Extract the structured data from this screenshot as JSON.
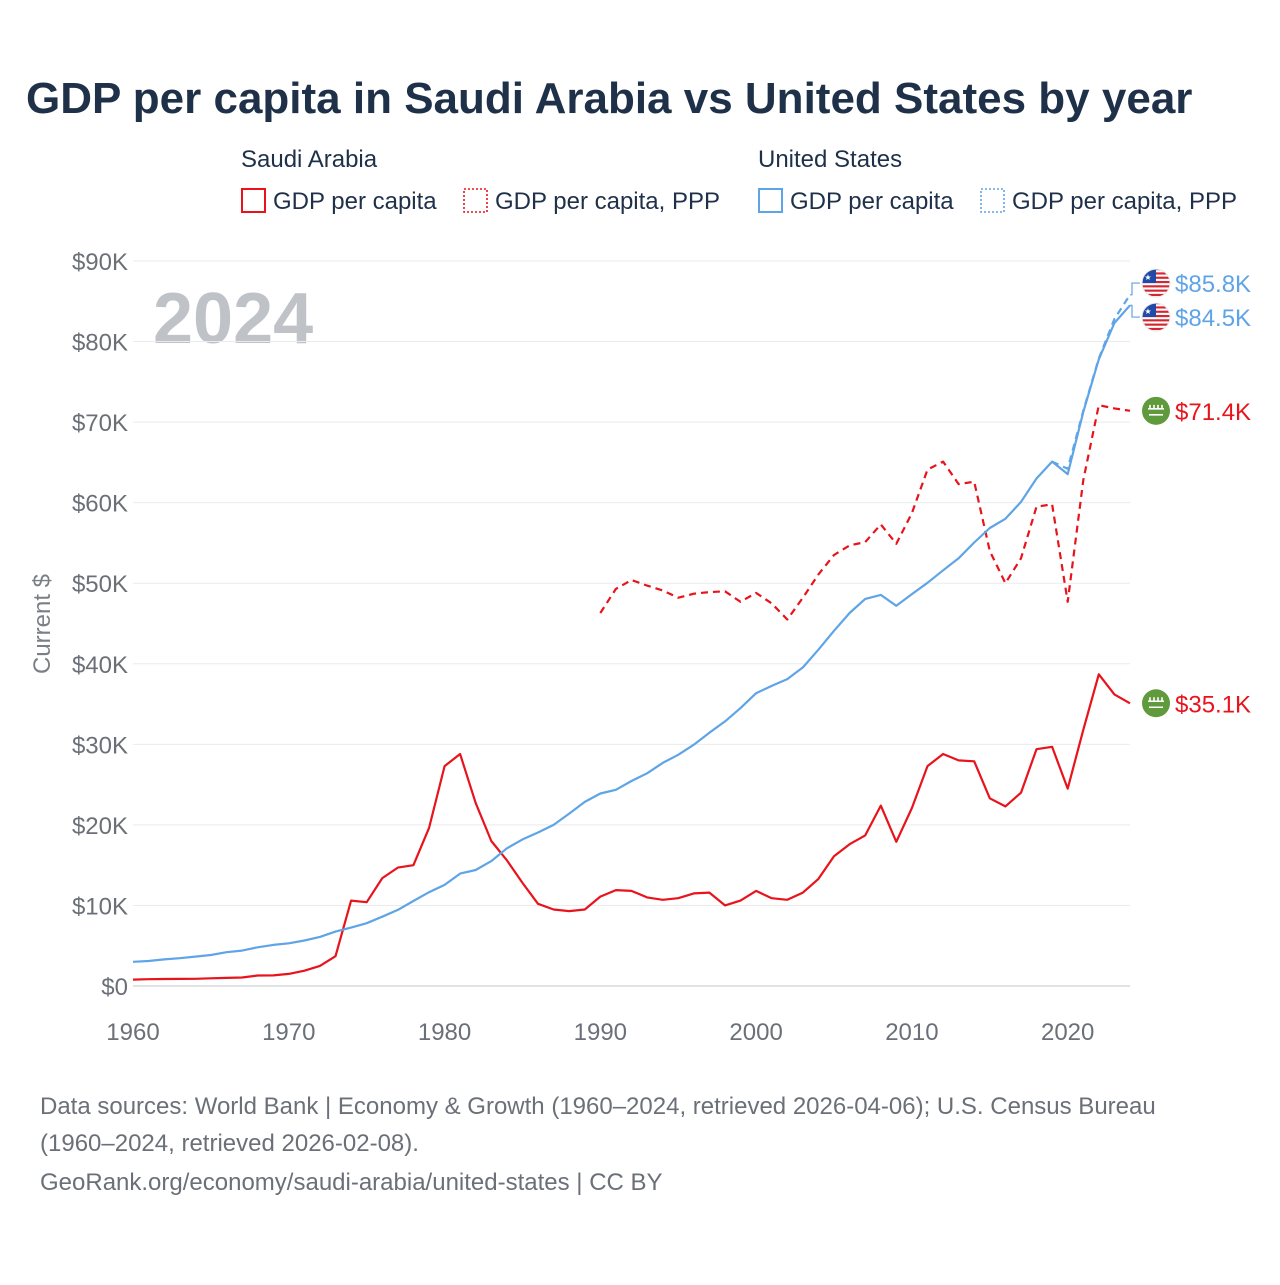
{
  "chart_data": {
    "type": "line",
    "title": "GDP per capita in Saudi Arabia vs United States by year",
    "year_watermark": "2024",
    "ylabel": "Current $",
    "xlabel": "",
    "x_ticks": [
      "1960",
      "1970",
      "1980",
      "1990",
      "2000",
      "2010",
      "2020"
    ],
    "x_tick_values": [
      1960,
      1970,
      1980,
      1990,
      2000,
      2010,
      2020
    ],
    "xlim": [
      1960,
      2024
    ],
    "y_ticks": [
      "$0",
      "$10K",
      "$20K",
      "$30K",
      "$40K",
      "$50K",
      "$60K",
      "$70K",
      "$80K",
      "$90K"
    ],
    "y_tick_values": [
      0,
      10000,
      20000,
      30000,
      40000,
      50000,
      60000,
      70000,
      80000,
      90000
    ],
    "ylim": [
      0,
      90000
    ],
    "grid": true,
    "legend": {
      "groups": [
        {
          "name": "Saudi Arabia",
          "color": "#e8131b",
          "items": [
            {
              "label": "GDP per capita",
              "style": "solid"
            },
            {
              "label": "GDP per capita, PPP",
              "style": "dotted"
            }
          ]
        },
        {
          "name": "United States",
          "color": "#5fa4e6",
          "items": [
            {
              "label": "GDP per capita",
              "style": "solid"
            },
            {
              "label": "GDP per capita, PPP",
              "style": "dotted"
            }
          ]
        }
      ]
    },
    "series": [
      {
        "name": "Saudi Arabia GDP per capita",
        "country": "Saudi Arabia",
        "color": "#e8131b",
        "dash": "solid",
        "end_label": "$35.1K",
        "flag": "saudi-flag-icon",
        "x": [
          1960,
          1961,
          1962,
          1963,
          1964,
          1965,
          1966,
          1967,
          1968,
          1969,
          1970,
          1971,
          1972,
          1973,
          1974,
          1975,
          1976,
          1977,
          1978,
          1979,
          1980,
          1981,
          1982,
          1983,
          1984,
          1985,
          1986,
          1987,
          1988,
          1989,
          1990,
          1991,
          1992,
          1993,
          1994,
          1995,
          1996,
          1997,
          1998,
          1999,
          2000,
          2001,
          2002,
          2003,
          2004,
          2005,
          2006,
          2007,
          2008,
          2009,
          2010,
          2011,
          2012,
          2013,
          2014,
          2015,
          2016,
          2017,
          2018,
          2019,
          2020,
          2021,
          2022,
          2023,
          2024
        ],
        "values": [
          800,
          850,
          870,
          880,
          900,
          950,
          1000,
          1050,
          1300,
          1320,
          1500,
          1900,
          2500,
          3700,
          10600,
          10400,
          13400,
          14700,
          15000,
          19600,
          27300,
          28800,
          22700,
          18000,
          15600,
          12800,
          10200,
          9500,
          9300,
          9500,
          11100,
          11900,
          11800,
          11000,
          10700,
          10900,
          11500,
          11600,
          10000,
          10600,
          11800,
          10900,
          10700,
          11600,
          13300,
          16100,
          17600,
          18700,
          22400,
          17900,
          22100,
          27300,
          28800,
          28000,
          27900,
          23300,
          22300,
          24000,
          29400,
          29700,
          24500,
          31800,
          38700,
          36200,
          35100
        ]
      },
      {
        "name": "Saudi Arabia GDP per capita, PPP",
        "country": "Saudi Arabia",
        "color": "#e8131b",
        "dash": "dashed",
        "end_label": "$71.4K",
        "flag": "saudi-flag-icon",
        "x": [
          1990,
          1991,
          1992,
          1993,
          1994,
          1995,
          1996,
          1997,
          1998,
          1999,
          2000,
          2001,
          2002,
          2003,
          2004,
          2005,
          2006,
          2007,
          2008,
          2009,
          2010,
          2011,
          2012,
          2013,
          2014,
          2015,
          2016,
          2017,
          2018,
          2019,
          2020,
          2021,
          2022,
          2023,
          2024
        ],
        "values": [
          46300,
          49300,
          50400,
          49700,
          49100,
          48200,
          48700,
          48900,
          49000,
          47700,
          48800,
          47500,
          45500,
          48200,
          51100,
          53500,
          54700,
          55100,
          57300,
          54900,
          58700,
          64100,
          65100,
          62300,
          62600,
          54000,
          50000,
          53100,
          59500,
          59800,
          47700,
          62800,
          72100,
          71700,
          71400
        ]
      },
      {
        "name": "United States GDP per capita",
        "country": "United States",
        "color": "#5fa4e6",
        "dash": "solid",
        "end_label": "$84.5K",
        "flag": "us-flag-icon",
        "x": [
          1960,
          1961,
          1962,
          1963,
          1964,
          1965,
          1966,
          1967,
          1968,
          1969,
          1970,
          1971,
          1972,
          1973,
          1974,
          1975,
          1976,
          1977,
          1978,
          1979,
          1980,
          1981,
          1982,
          1983,
          1984,
          1985,
          1986,
          1987,
          1988,
          1989,
          1990,
          1991,
          1992,
          1993,
          1994,
          1995,
          1996,
          1997,
          1998,
          1999,
          2000,
          2001,
          2002,
          2003,
          2004,
          2005,
          2006,
          2007,
          2008,
          2009,
          2010,
          2011,
          2012,
          2013,
          2014,
          2015,
          2016,
          2017,
          2018,
          2019,
          2020,
          2021,
          2022,
          2023,
          2024
        ],
        "values": [
          3000,
          3100,
          3300,
          3450,
          3650,
          3850,
          4200,
          4400,
          4800,
          5100,
          5300,
          5650,
          6100,
          6750,
          7250,
          7800,
          8600,
          9450,
          10550,
          11650,
          12550,
          13950,
          14400,
          15500,
          17100,
          18200,
          19050,
          20000,
          21400,
          22850,
          23900,
          24350,
          25450,
          26400,
          27700,
          28700,
          29950,
          31450,
          32850,
          34500,
          36350,
          37250,
          38100,
          39550,
          41750,
          44100,
          46300,
          48050,
          48550,
          47200,
          48650,
          50050,
          51600,
          53100,
          55050,
          56850,
          58000,
          60100,
          63000,
          65100,
          63550,
          71250,
          77800,
          82300,
          84500
        ]
      },
      {
        "name": "United States GDP per capita, PPP",
        "country": "United States",
        "color": "#5fa4e6",
        "dash": "dashed",
        "end_label": "$85.8K",
        "flag": "us-flag-icon",
        "x": [
          2019,
          2020,
          2021,
          2022,
          2023,
          2024
        ],
        "values": [
          65100,
          64200,
          71400,
          77900,
          82800,
          85800
        ]
      }
    ],
    "sources": [
      "Data sources: World Bank | Economy & Growth (1960–2024, retrieved 2026-04-06); U.S. Census Bureau",
      "(1960–2024, retrieved 2026-02-08).",
      "GeoRank.org/economy/saudi-arabia/united-states | CC BY"
    ]
  }
}
